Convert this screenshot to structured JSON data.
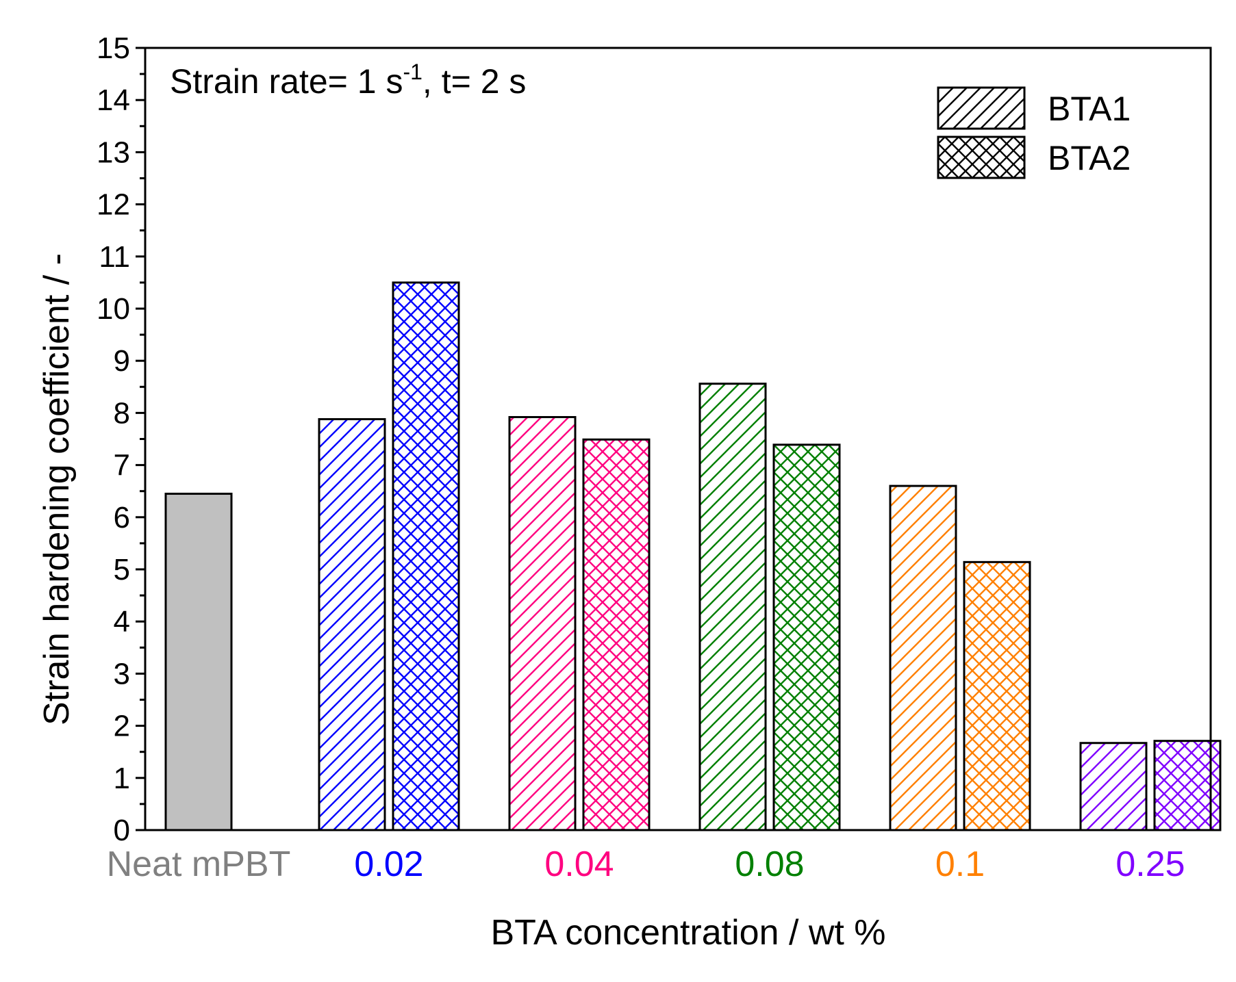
{
  "chart_data": {
    "type": "bar",
    "title": "",
    "annotation": {
      "prefix": "Strain rate= 1 s",
      "superscript": "-1",
      "suffix": ", t= 2 s"
    },
    "xlabel": "BTA concentration / wt %",
    "ylabel": "Strain hardening coefficient / -",
    "ylim": [
      0,
      15
    ],
    "yticks": [
      "0",
      "1",
      "2",
      "3",
      "4",
      "5",
      "6",
      "7",
      "8",
      "9",
      "10",
      "11",
      "12",
      "13",
      "14",
      "15"
    ],
    "grid": false,
    "legend_position": "top-right",
    "legend": [
      {
        "name": "BTA1",
        "pattern": "hatch"
      },
      {
        "name": "BTA2",
        "pattern": "crosshatch"
      }
    ],
    "categories": [
      {
        "label": "Neat mPBT",
        "color": "#808080",
        "bars": [
          {
            "series": "Neat",
            "value": 6.45,
            "pattern": "solid",
            "fill": "#c0c0c0"
          }
        ]
      },
      {
        "label": "0.02",
        "color": "#0000ff",
        "bars": [
          {
            "series": "BTA1",
            "value": 7.88,
            "pattern": "hatch"
          },
          {
            "series": "BTA2",
            "value": 10.5,
            "pattern": "crosshatch"
          }
        ]
      },
      {
        "label": "0.04",
        "color": "#ff0080",
        "bars": [
          {
            "series": "BTA1",
            "value": 7.92,
            "pattern": "hatch"
          },
          {
            "series": "BTA2",
            "value": 7.49,
            "pattern": "crosshatch"
          }
        ]
      },
      {
        "label": "0.08",
        "color": "#008000",
        "bars": [
          {
            "series": "BTA1",
            "value": 8.56,
            "pattern": "hatch"
          },
          {
            "series": "BTA2",
            "value": 7.39,
            "pattern": "crosshatch"
          }
        ]
      },
      {
        "label": "0.1",
        "color": "#ff8000",
        "bars": [
          {
            "series": "BTA1",
            "value": 6.6,
            "pattern": "hatch"
          },
          {
            "series": "BTA2",
            "value": 5.14,
            "pattern": "crosshatch"
          }
        ]
      },
      {
        "label": "0.25",
        "color": "#8000ff",
        "bars": [
          {
            "series": "BTA1",
            "value": 1.67,
            "pattern": "hatch"
          },
          {
            "series": "BTA2",
            "value": 1.71,
            "pattern": "crosshatch"
          }
        ]
      }
    ]
  }
}
